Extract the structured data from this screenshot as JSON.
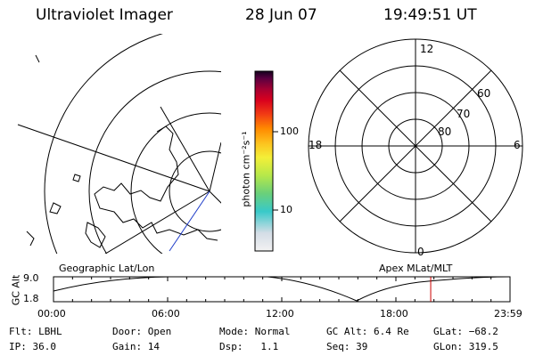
{
  "header": {
    "title": "Ultraviolet Imager",
    "date": "28 Jun 07",
    "time": "19:49:51 UT"
  },
  "colorbar": {
    "unit_label": "photon cm⁻²s⁻¹",
    "ticks": [
      "100",
      "10"
    ]
  },
  "polar_plot": {
    "mlt_labels": [
      "12",
      "18",
      "6",
      "0"
    ],
    "lat_labels": [
      "60",
      "70",
      "80"
    ]
  },
  "timeline": {
    "ylabel": "GC Alt",
    "yticks": [
      "9.0",
      "1.8"
    ],
    "left_title": "Geographic Lat/Lon",
    "right_title": "Apex MLat/MLT",
    "xticks": [
      "00:00",
      "06:00",
      "12:00",
      "18:00",
      "23:59"
    ],
    "marker_hour": 19.83,
    "marker_color": "#cc0000"
  },
  "info": {
    "row1": [
      {
        "label": "Flt:",
        "value": "LBHL"
      },
      {
        "label": "Door:",
        "value": "Open"
      },
      {
        "label": "Mode:",
        "value": "Normal"
      },
      {
        "label": "GC Alt:",
        "value": "6.4 Re"
      },
      {
        "label": "GLat:",
        "value": "−68.2"
      }
    ],
    "row2": [
      {
        "label": "IP:",
        "value": "36.0"
      },
      {
        "label": "Gain:",
        "value": "14"
      },
      {
        "label": "Dsp:",
        "value": "1.1"
      },
      {
        "label": "Seq:",
        "value": "39"
      },
      {
        "label": "GLon:",
        "value": "319.5"
      }
    ]
  },
  "colors": {
    "bar_stops": [
      "#f2f2f2",
      "#d4dde6",
      "#38c9c9",
      "#6ad07a",
      "#b6e84a",
      "#f4ef38",
      "#fdc21e",
      "#ff8a00",
      "#f23c14",
      "#d8001e",
      "#a50032",
      "#5a0040",
      "#14001e"
    ],
    "orbit_track": "#1e3cc8"
  }
}
